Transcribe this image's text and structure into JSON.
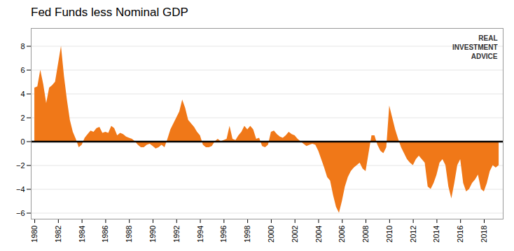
{
  "chart_data": {
    "type": "area",
    "title": "Fed Funds less Nominal GDP",
    "color": "#f07818",
    "x": [
      1980.0,
      1980.25,
      1980.5,
      1980.75,
      1981.0,
      1981.25,
      1981.5,
      1981.75,
      1982.0,
      1982.25,
      1982.5,
      1982.75,
      1983.0,
      1983.25,
      1983.5,
      1983.75,
      1984.0,
      1984.25,
      1984.5,
      1984.75,
      1985.0,
      1985.25,
      1985.5,
      1985.75,
      1986.0,
      1986.25,
      1986.5,
      1986.75,
      1987.0,
      1987.25,
      1987.5,
      1987.75,
      1988.0,
      1988.25,
      1988.5,
      1988.75,
      1989.0,
      1989.25,
      1989.5,
      1989.75,
      1990.0,
      1990.25,
      1990.5,
      1990.75,
      1991.0,
      1991.25,
      1991.5,
      1991.75,
      1992.0,
      1992.25,
      1992.5,
      1992.75,
      1993.0,
      1993.25,
      1993.5,
      1993.75,
      1994.0,
      1994.25,
      1994.5,
      1994.75,
      1995.0,
      1995.25,
      1995.5,
      1995.75,
      1996.0,
      1996.25,
      1996.5,
      1996.75,
      1997.0,
      1997.25,
      1997.5,
      1997.75,
      1998.0,
      1998.25,
      1998.5,
      1998.75,
      1999.0,
      1999.25,
      1999.5,
      1999.75,
      2000.0,
      2000.25,
      2000.5,
      2000.75,
      2001.0,
      2001.25,
      2001.5,
      2001.75,
      2002.0,
      2002.25,
      2002.5,
      2002.75,
      2003.0,
      2003.25,
      2003.5,
      2003.75,
      2004.0,
      2004.25,
      2004.5,
      2004.75,
      2005.0,
      2005.25,
      2005.5,
      2005.75,
      2006.0,
      2006.25,
      2006.5,
      2006.75,
      2007.0,
      2007.25,
      2007.5,
      2007.75,
      2008.0,
      2008.25,
      2008.5,
      2008.75,
      2009.0,
      2009.25,
      2009.5,
      2009.75,
      2010.0,
      2010.25,
      2010.5,
      2010.75,
      2011.0,
      2011.25,
      2011.5,
      2011.75,
      2012.0,
      2012.25,
      2012.5,
      2012.75,
      2013.0,
      2013.25,
      2013.5,
      2013.75,
      2014.0,
      2014.25,
      2014.5,
      2014.75,
      2015.0,
      2015.25,
      2015.5,
      2015.75,
      2016.0,
      2016.25,
      2016.5,
      2016.75,
      2017.0,
      2017.25,
      2017.5,
      2017.75,
      2018.0,
      2018.25,
      2018.5,
      2018.75,
      2019.0,
      2019.25
    ],
    "values": [
      4.5,
      4.6,
      6.0,
      4.8,
      3.2,
      4.5,
      4.7,
      5.0,
      6.5,
      8.0,
      5.5,
      3.5,
      1.8,
      0.8,
      0.2,
      -0.5,
      -0.3,
      0.3,
      0.6,
      0.9,
      0.8,
      1.1,
      1.2,
      0.7,
      0.8,
      0.7,
      1.3,
      1.1,
      0.5,
      0.7,
      0.6,
      0.4,
      0.3,
      0.2,
      0.0,
      -0.3,
      -0.5,
      -0.5,
      -0.3,
      -0.2,
      -0.4,
      -0.6,
      -0.5,
      -0.3,
      -0.5,
      0.2,
      1.0,
      1.5,
      2.0,
      2.5,
      3.5,
      2.8,
      1.8,
      1.5,
      1.2,
      0.8,
      0.5,
      -0.3,
      -0.5,
      -0.5,
      -0.4,
      0.0,
      0.2,
      0.0,
      0.1,
      0.2,
      1.3,
      0.2,
      0.1,
      0.5,
      0.8,
      1.3,
      1.0,
      1.3,
      1.0,
      0.2,
      0.3,
      -0.4,
      -0.5,
      -0.3,
      0.8,
      0.9,
      0.6,
      0.4,
      0.3,
      0.5,
      0.8,
      0.6,
      0.5,
      0.2,
      0.0,
      -0.2,
      -0.4,
      -0.3,
      -0.2,
      -0.3,
      -0.8,
      -1.5,
      -2.2,
      -3.0,
      -3.3,
      -4.5,
      -5.5,
      -6.0,
      -5.0,
      -3.8,
      -3.0,
      -2.5,
      -2.2,
      -2.0,
      -1.8,
      -2.3,
      -2.5,
      -1.0,
      0.5,
      0.5,
      -0.3,
      -0.8,
      -1.0,
      -0.5,
      3.0,
      2.0,
      1.0,
      0.2,
      -0.5,
      -1.0,
      -1.5,
      -1.8,
      -2.0,
      -1.5,
      -1.2,
      -1.5,
      -1.8,
      -3.8,
      -4.0,
      -3.5,
      -2.8,
      -1.8,
      -1.5,
      -2.0,
      -3.8,
      -4.8,
      -3.5,
      -2.0,
      -1.5,
      -3.5,
      -4.2,
      -4.0,
      -3.5,
      -3.2,
      -2.8,
      -4.0,
      -4.2,
      -3.5,
      -2.5,
      -2.0,
      -2.2,
      -2.0
    ],
    "xlim": [
      1979.7,
      2019.6
    ],
    "xticks": [
      1980,
      1982,
      1984,
      1986,
      1988,
      1990,
      1992,
      1994,
      1996,
      1998,
      2000,
      2002,
      2004,
      2006,
      2008,
      2010,
      2012,
      2014,
      2016,
      2018
    ],
    "ylim": [
      -6.5,
      9.5
    ],
    "yticks": [
      -6,
      -4,
      -2,
      0,
      2,
      4,
      6,
      8
    ],
    "grid": true,
    "annotations": [
      "REAL\nINVESTMENT\nADVICE"
    ]
  }
}
